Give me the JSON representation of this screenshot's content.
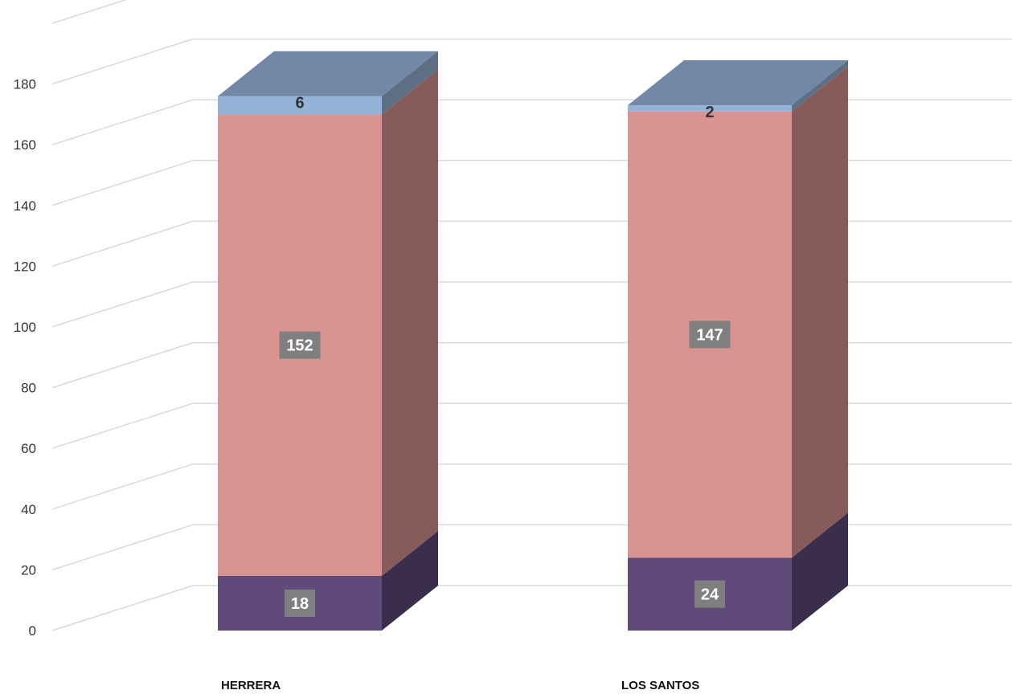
{
  "chart_data": {
    "type": "bar",
    "stacked": true,
    "three_d": true,
    "categories": [
      "HERRERA",
      "LOS SANTOS"
    ],
    "series": [
      {
        "values": [
          18,
          24
        ],
        "color": "#5f4a7a",
        "label_style": "boxed"
      },
      {
        "values": [
          152,
          147
        ],
        "color": "#d99391",
        "label_style": "boxed"
      },
      {
        "values": [
          6,
          2
        ],
        "color": "#95b3d7",
        "label_style": "plain"
      }
    ],
    "ylim": [
      0,
      180
    ],
    "ytick_step": 20,
    "grid": true,
    "legend": "none",
    "colors": {
      "grid": "#d9d9d9",
      "label_box": "#7f7f7f",
      "top_face": "#7388a6"
    }
  }
}
